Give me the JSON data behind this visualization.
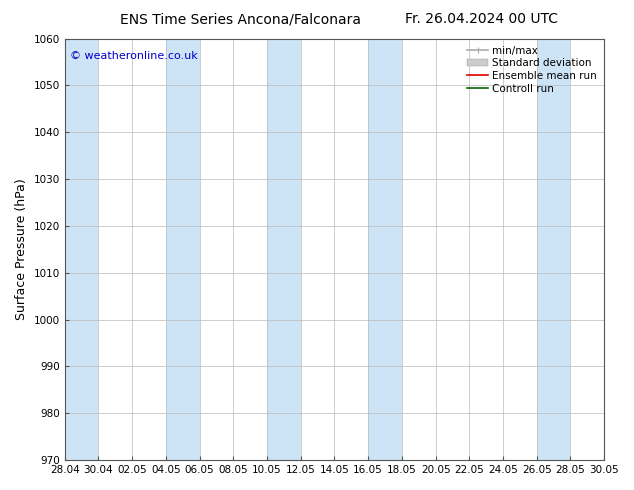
{
  "title_left": "ENS Time Series Ancona/Falconara",
  "title_right": "Fr. 26.04.2024 00 UTC",
  "ylabel": "Surface Pressure (hPa)",
  "ylim": [
    970,
    1060
  ],
  "yticks": [
    970,
    980,
    990,
    1000,
    1010,
    1020,
    1030,
    1040,
    1050,
    1060
  ],
  "x_labels": [
    "28.04",
    "30.04",
    "02.05",
    "04.05",
    "06.05",
    "08.05",
    "10.05",
    "12.05",
    "14.05",
    "16.05",
    "18.05",
    "20.05",
    "22.05",
    "24.05",
    "26.05",
    "28.05",
    "30.05"
  ],
  "background_color": "#ffffff",
  "plot_bg_color": "#ffffff",
  "stripe_color": "#cce4f5",
  "border_color": "#555555",
  "grid_color": "#bbbbbb",
  "copyright_text": "© weatheronline.co.uk",
  "copyright_color": "#0000cc",
  "legend_items": [
    {
      "label": "min/max",
      "color": "#aaaaaa",
      "lw": 1.2
    },
    {
      "label": "Standard deviation",
      "color": "#cccccc",
      "lw": 6
    },
    {
      "label": "Ensemble mean run",
      "color": "#dd0000",
      "lw": 1.2
    },
    {
      "label": "Controll run",
      "color": "#006600",
      "lw": 1.2
    }
  ],
  "title_fontsize": 10,
  "ylabel_fontsize": 9,
  "tick_fontsize": 7.5,
  "legend_fontsize": 7.5,
  "copyright_fontsize": 8
}
